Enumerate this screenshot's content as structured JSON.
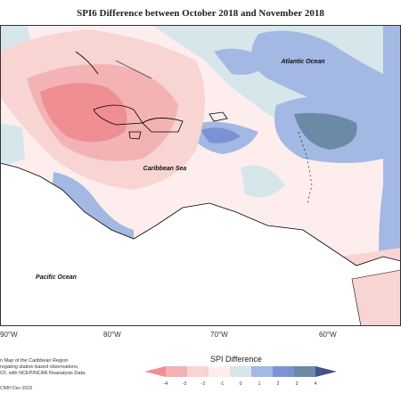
{
  "title": "SPI6 Difference between October 2018 and November 2018",
  "labels": {
    "atlantic": "Atlantic Ocean",
    "caribbean": "Caribbean Sea",
    "pacific": "Pacific Ocean"
  },
  "lon_ticks": [
    "90°W",
    "80°W",
    "70°W",
    "60°W"
  ],
  "notes": [
    "n Map of the Caribbean Region",
    "regating station based observations,",
    "CF, with NCEP/NCAR Reanalysis Data."
  ],
  "credit": "CIMH Dec-2018",
  "legend": {
    "title": "SPI Difference",
    "ticks": [
      "-4",
      "-3",
      "-2",
      "-1",
      "0",
      "1",
      "2",
      "3",
      "4"
    ],
    "colors": [
      "#ef8f93",
      "#f3b3b4",
      "#f8d4d3",
      "#fdeeed",
      "#d6e6ea",
      "#a3b8e2",
      "#7c92d4",
      "#6b8aa6",
      "#44528a"
    ]
  }
}
